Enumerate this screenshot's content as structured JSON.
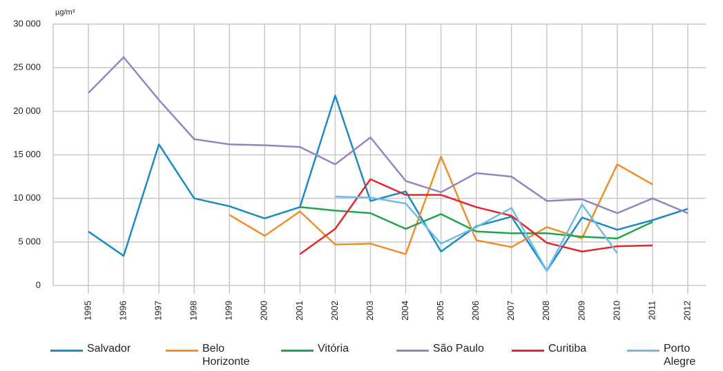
{
  "chart_data": {
    "type": "line",
    "y_unit": "µg/m³",
    "categories": [
      "1995",
      "1996",
      "1997",
      "1998",
      "1999",
      "2000",
      "2001",
      "2002",
      "2003",
      "2004",
      "2005",
      "2006",
      "2007",
      "2008",
      "2009",
      "2010",
      "2011",
      "2012"
    ],
    "series": [
      {
        "name": "Salvador",
        "color": "#1a8ac6",
        "values": [
          6200,
          3400,
          16200,
          10000,
          9100,
          7700,
          9000,
          21800,
          9700,
          10800,
          3900,
          6800,
          7900,
          1700,
          7800,
          6400,
          7500,
          8800
        ]
      },
      {
        "name": "Belo Horizonte",
        "color": "#f28c28",
        "values": [
          null,
          null,
          null,
          null,
          8100,
          5700,
          8500,
          4700,
          4800,
          3600,
          14800,
          5200,
          4400,
          6700,
          5400,
          13900,
          11600,
          null
        ]
      },
      {
        "name": "Vitória",
        "color": "#1ea44a",
        "values": [
          null,
          null,
          null,
          null,
          null,
          null,
          9000,
          8600,
          8300,
          6500,
          8200,
          6200,
          6000,
          6000,
          5600,
          5400,
          7300,
          null
        ]
      },
      {
        "name": "São Paulo",
        "color": "#8f86c2",
        "values": [
          22100,
          26200,
          21300,
          16800,
          16200,
          16100,
          15900,
          13900,
          17000,
          12000,
          10700,
          12900,
          12500,
          9700,
          9900,
          8300,
          10000,
          8300
        ]
      },
      {
        "name": "Curitiba",
        "color": "#e3262b",
        "values": [
          null,
          null,
          null,
          null,
          null,
          null,
          3600,
          6500,
          12200,
          10400,
          10400,
          9000,
          8000,
          4900,
          3900,
          4500,
          4600,
          null
        ]
      },
      {
        "name": "Porto Alegre",
        "color": "#6fbbe5",
        "values": [
          null,
          null,
          null,
          null,
          null,
          null,
          null,
          10200,
          10100,
          9400,
          4800,
          6700,
          8900,
          1700,
          9300,
          3700,
          null,
          null
        ]
      }
    ],
    "ylim": [
      0,
      30000
    ],
    "yticks": [
      0,
      {
        "value": 5000,
        "label": "5 000"
      },
      {
        "value": 10000,
        "label": "10 000"
      },
      {
        "value": 15000,
        "label": "15 000"
      },
      {
        "value": 20000,
        "label": "20 000"
      },
      {
        "value": 25000,
        "label": "25 000"
      },
      {
        "value": 30000,
        "label": "30 000"
      }
    ],
    "grid": true
  }
}
